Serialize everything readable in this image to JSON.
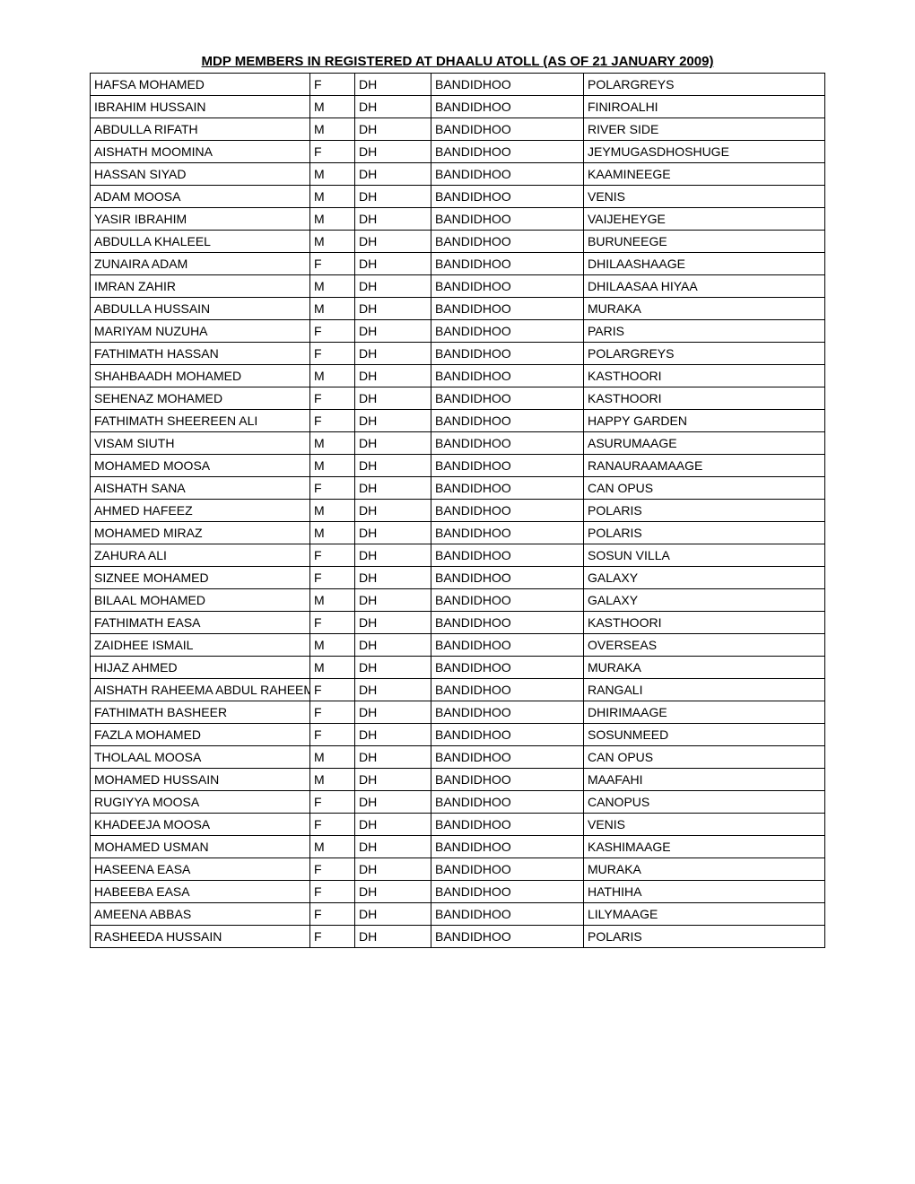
{
  "title": "MDP MEMBERS IN REGISTERED AT DHAALU ATOLL (AS OF 21 JANUARY 2009)",
  "rows": [
    {
      "name": "HAFSA MOHAMED",
      "gender": "F",
      "atoll": "DH",
      "island": "BANDIDHOO",
      "house": "POLARGREYS"
    },
    {
      "name": "IBRAHIM HUSSAIN",
      "gender": "M",
      "atoll": "DH",
      "island": "BANDIDHOO",
      "house": "FINIROALHI"
    },
    {
      "name": "ABDULLA RIFATH",
      "gender": "M",
      "atoll": "DH",
      "island": "BANDIDHOO",
      "house": "RIVER SIDE"
    },
    {
      "name": "AISHATH MOOMINA",
      "gender": "F",
      "atoll": "DH",
      "island": "BANDIDHOO",
      "house": "JEYMUGASDHOSHUGE"
    },
    {
      "name": "HASSAN SIYAD",
      "gender": "M",
      "atoll": "DH",
      "island": "BANDIDHOO",
      "house": "KAAMINEEGE"
    },
    {
      "name": "ADAM MOOSA",
      "gender": "M",
      "atoll": "DH",
      "island": "BANDIDHOO",
      "house": "VENIS"
    },
    {
      "name": "YASIR IBRAHIM",
      "gender": "M",
      "atoll": "DH",
      "island": "BANDIDHOO",
      "house": "VAIJEHEYGE"
    },
    {
      "name": "ABDULLA KHALEEL",
      "gender": "M",
      "atoll": "DH",
      "island": "BANDIDHOO",
      "house": "BURUNEEGE"
    },
    {
      "name": "ZUNAIRA ADAM",
      "gender": "F",
      "atoll": "DH",
      "island": "BANDIDHOO",
      "house": "DHILAASHAAGE"
    },
    {
      "name": "IMRAN ZAHIR",
      "gender": "M",
      "atoll": "DH",
      "island": "BANDIDHOO",
      "house": "DHILAASAA HIYAA"
    },
    {
      "name": "ABDULLA HUSSAIN",
      "gender": "M",
      "atoll": "DH",
      "island": "BANDIDHOO",
      "house": "MURAKA"
    },
    {
      "name": "MARIYAM NUZUHA",
      "gender": "F",
      "atoll": "DH",
      "island": "BANDIDHOO",
      "house": "PARIS"
    },
    {
      "name": "FATHIMATH HASSAN",
      "gender": "F",
      "atoll": "DH",
      "island": "BANDIDHOO",
      "house": "POLARGREYS"
    },
    {
      "name": "SHAHBAADH MOHAMED",
      "gender": "M",
      "atoll": "DH",
      "island": "BANDIDHOO",
      "house": "KASTHOORI"
    },
    {
      "name": "SEHENAZ MOHAMED",
      "gender": "F",
      "atoll": "DH",
      "island": "BANDIDHOO",
      "house": "KASTHOORI"
    },
    {
      "name": "FATHIMATH SHEEREEN ALI",
      "gender": "F",
      "atoll": "DH",
      "island": "BANDIDHOO",
      "house": "HAPPY GARDEN"
    },
    {
      "name": "VISAM SIUTH",
      "gender": "M",
      "atoll": "DH",
      "island": "BANDIDHOO",
      "house": "ASURUMAAGE"
    },
    {
      "name": "MOHAMED MOOSA",
      "gender": "M",
      "atoll": "DH",
      "island": "BANDIDHOO",
      "house": "RANAURAAMAAGE"
    },
    {
      "name": "AISHATH SANA",
      "gender": "F",
      "atoll": "DH",
      "island": "BANDIDHOO",
      "house": "CAN OPUS"
    },
    {
      "name": "AHMED HAFEEZ",
      "gender": "M",
      "atoll": "DH",
      "island": "BANDIDHOO",
      "house": "POLARIS"
    },
    {
      "name": "MOHAMED MIRAZ",
      "gender": "M",
      "atoll": "DH",
      "island": "BANDIDHOO",
      "house": "POLARIS"
    },
    {
      "name": "ZAHURA ALI",
      "gender": "F",
      "atoll": "DH",
      "island": "BANDIDHOO",
      "house": "SOSUN VILLA"
    },
    {
      "name": "SIZNEE MOHAMED",
      "gender": "F",
      "atoll": "DH",
      "island": "BANDIDHOO",
      "house": "GALAXY"
    },
    {
      "name": "BILAAL MOHAMED",
      "gender": "M",
      "atoll": "DH",
      "island": "BANDIDHOO",
      "house": "GALAXY"
    },
    {
      "name": "FATHIMATH EASA",
      "gender": "F",
      "atoll": "DH",
      "island": "BANDIDHOO",
      "house": "KASTHOORI"
    },
    {
      "name": "ZAIDHEE ISMAIL",
      "gender": "M",
      "atoll": "DH",
      "island": "BANDIDHOO",
      "house": "OVERSEAS"
    },
    {
      "name": "HIJAZ AHMED",
      "gender": "M",
      "atoll": "DH",
      "island": "BANDIDHOO",
      "house": "MURAKA"
    },
    {
      "name": "AISHATH RAHEEMA ABDUL RAHEEM",
      "gender": "F",
      "atoll": "DH",
      "island": "BANDIDHOO",
      "house": "RANGALI"
    },
    {
      "name": "FATHIMATH BASHEER",
      "gender": "F",
      "atoll": "DH",
      "island": "BANDIDHOO",
      "house": "DHIRIMAAGE"
    },
    {
      "name": "FAZLA MOHAMED",
      "gender": "F",
      "atoll": "DH",
      "island": "BANDIDHOO",
      "house": "SOSUNMEED"
    },
    {
      "name": "THOLAAL MOOSA",
      "gender": "M",
      "atoll": "DH",
      "island": "BANDIDHOO",
      "house": "CAN OPUS"
    },
    {
      "name": "MOHAMED HUSSAIN",
      "gender": "M",
      "atoll": "DH",
      "island": "BANDIDHOO",
      "house": "MAAFAHI"
    },
    {
      "name": "RUGIYYA MOOSA",
      "gender": "F",
      "atoll": "DH",
      "island": "BANDIDHOO",
      "house": "CANOPUS"
    },
    {
      "name": "KHADEEJA MOOSA",
      "gender": "F",
      "atoll": "DH",
      "island": "BANDIDHOO",
      "house": "VENIS"
    },
    {
      "name": "MOHAMED USMAN",
      "gender": "M",
      "atoll": "DH",
      "island": "BANDIDHOO",
      "house": "KASHIMAAGE"
    },
    {
      "name": "HASEENA EASA",
      "gender": "F",
      "atoll": "DH",
      "island": "BANDIDHOO",
      "house": "MURAKA"
    },
    {
      "name": "HABEEBA EASA",
      "gender": "F",
      "atoll": "DH",
      "island": "BANDIDHOO",
      "house": "HATHIHA"
    },
    {
      "name": "AMEENA ABBAS",
      "gender": "F",
      "atoll": "DH",
      "island": "BANDIDHOO",
      "house": "LILYMAAGE"
    },
    {
      "name": "RASHEEDA HUSSAIN",
      "gender": "F",
      "atoll": "DH",
      "island": "BANDIDHOO",
      "house": "POLARIS"
    }
  ]
}
